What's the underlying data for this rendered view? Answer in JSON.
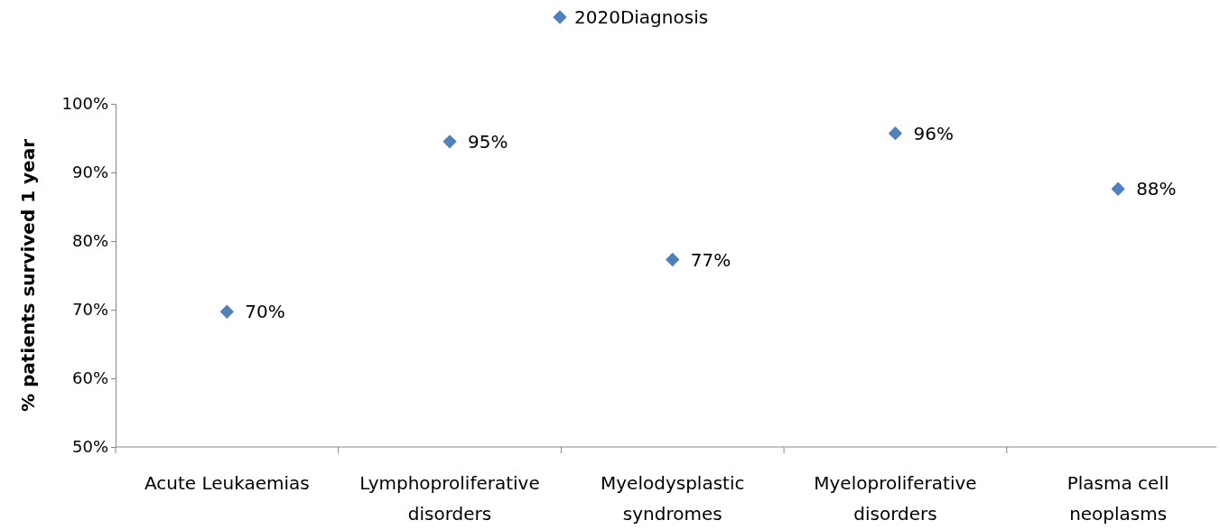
{
  "chart_data": {
    "type": "scatter",
    "ylabel": "% patients survived 1 year",
    "categories": [
      "Acute Leukaemias",
      "Lymphoproliferative disorders",
      "Myelodysplastic syndromes",
      "Myeloproliferative disorders",
      "Plasma cell neoplasms"
    ],
    "series": [
      {
        "name": "2020Diagnosis",
        "color": "#4f81bd",
        "values": [
          69.7,
          94.5,
          77.3,
          95.7,
          87.6
        ],
        "value_labels": [
          "70%",
          "95%",
          "77%",
          "96%",
          "88%"
        ]
      }
    ],
    "ylim": [
      50,
      100
    ],
    "yticks": [
      {
        "value": 50,
        "label": "50%"
      },
      {
        "value": 60,
        "label": "60%"
      },
      {
        "value": 70,
        "label": "70%"
      },
      {
        "value": 80,
        "label": "80%"
      },
      {
        "value": 90,
        "label": "90%"
      },
      {
        "value": 100,
        "label": "100%"
      }
    ],
    "marker": "diamond",
    "legend": "top",
    "grid": false
  }
}
